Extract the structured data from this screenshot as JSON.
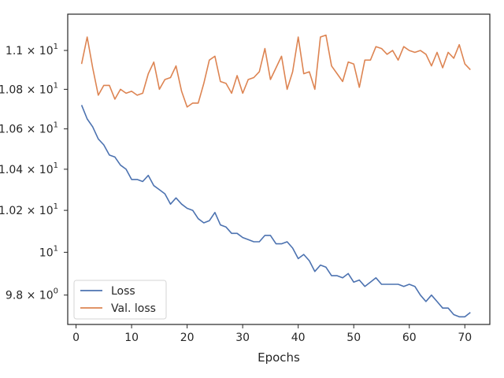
{
  "chart_data": {
    "type": "line",
    "title": "",
    "xlabel": "Epochs",
    "ylabel": "",
    "yscale": "log",
    "xlim": [
      -1.5,
      74.5
    ],
    "ylim": [
      9.665,
      11.19
    ],
    "grid": false,
    "legend_position": "lower-left",
    "x_ticks": [
      0,
      10,
      20,
      30,
      40,
      50,
      60,
      70
    ],
    "x_tick_labels": [
      "0",
      "10",
      "20",
      "30",
      "40",
      "50",
      "60",
      "70"
    ],
    "y_ticks": [
      {
        "value": 9.8,
        "label": "9.8 × 10",
        "exp": "0"
      },
      {
        "value": 10.0,
        "label": "10",
        "exp": "1"
      },
      {
        "value": 10.2,
        "label": "1.02 × 10",
        "exp": "1"
      },
      {
        "value": 10.4,
        "label": "1.04 × 10",
        "exp": "1"
      },
      {
        "value": 10.6,
        "label": "1.06 × 10",
        "exp": "1"
      },
      {
        "value": 10.8,
        "label": "1.08 × 10",
        "exp": "1"
      },
      {
        "value": 11.0,
        "label": "1.1 × 10",
        "exp": "1"
      }
    ],
    "series": [
      {
        "name": "Loss",
        "color": "#4c72b0",
        "x": [
          1,
          2,
          3,
          4,
          5,
          6,
          7,
          8,
          9,
          10,
          11,
          12,
          13,
          14,
          15,
          16,
          17,
          18,
          19,
          20,
          21,
          22,
          23,
          24,
          25,
          26,
          27,
          28,
          29,
          30,
          31,
          32,
          33,
          34,
          35,
          36,
          37,
          38,
          39,
          40,
          41,
          42,
          43,
          44,
          45,
          46,
          47,
          48,
          49,
          50,
          51,
          52,
          53,
          54,
          55,
          56,
          57,
          58,
          59,
          60,
          61,
          62,
          63,
          64,
          65,
          66,
          67,
          68,
          69,
          70,
          71
        ],
        "y": [
          10.72,
          10.65,
          10.61,
          10.55,
          10.52,
          10.47,
          10.46,
          10.42,
          10.4,
          10.35,
          10.35,
          10.34,
          10.37,
          10.32,
          10.3,
          10.28,
          10.23,
          10.26,
          10.23,
          10.21,
          10.2,
          10.16,
          10.14,
          10.15,
          10.19,
          10.13,
          10.12,
          10.09,
          10.09,
          10.07,
          10.06,
          10.05,
          10.05,
          10.08,
          10.08,
          10.04,
          10.04,
          10.05,
          10.02,
          9.97,
          9.99,
          9.96,
          9.91,
          9.94,
          9.93,
          9.89,
          9.89,
          9.88,
          9.9,
          9.86,
          9.87,
          9.84,
          9.86,
          9.88,
          9.85,
          9.85,
          9.85,
          9.85,
          9.84,
          9.85,
          9.84,
          9.8,
          9.77,
          9.8,
          9.77,
          9.74,
          9.74,
          9.71,
          9.7,
          9.7,
          9.72
        ]
      },
      {
        "name": "Val. loss",
        "color": "#dd8452",
        "x": [
          1,
          2,
          3,
          4,
          5,
          6,
          7,
          8,
          9,
          10,
          11,
          12,
          13,
          14,
          15,
          16,
          17,
          18,
          19,
          20,
          21,
          22,
          23,
          24,
          25,
          26,
          27,
          28,
          29,
          30,
          31,
          32,
          33,
          34,
          35,
          36,
          37,
          38,
          39,
          40,
          41,
          42,
          43,
          44,
          45,
          46,
          47,
          48,
          49,
          50,
          51,
          52,
          53,
          54,
          55,
          56,
          57,
          58,
          59,
          60,
          61,
          62,
          63,
          64,
          65,
          66,
          67,
          68,
          69,
          70,
          71
        ],
        "y": [
          10.93,
          11.07,
          10.91,
          10.77,
          10.82,
          10.82,
          10.75,
          10.8,
          10.78,
          10.79,
          10.77,
          10.78,
          10.88,
          10.94,
          10.8,
          10.85,
          10.86,
          10.92,
          10.79,
          10.71,
          10.73,
          10.73,
          10.83,
          10.95,
          10.97,
          10.84,
          10.83,
          10.78,
          10.87,
          10.78,
          10.85,
          10.86,
          10.89,
          11.01,
          10.85,
          10.91,
          10.97,
          10.8,
          10.89,
          11.07,
          10.88,
          10.89,
          10.8,
          11.07,
          11.08,
          10.92,
          10.88,
          10.84,
          10.94,
          10.93,
          10.81,
          10.95,
          10.95,
          11.02,
          11.01,
          10.98,
          11.0,
          10.95,
          11.02,
          11.0,
          10.99,
          11.0,
          10.98,
          10.92,
          10.99,
          10.91,
          10.99,
          10.96,
          11.03,
          10.93,
          10.9
        ]
      }
    ]
  }
}
